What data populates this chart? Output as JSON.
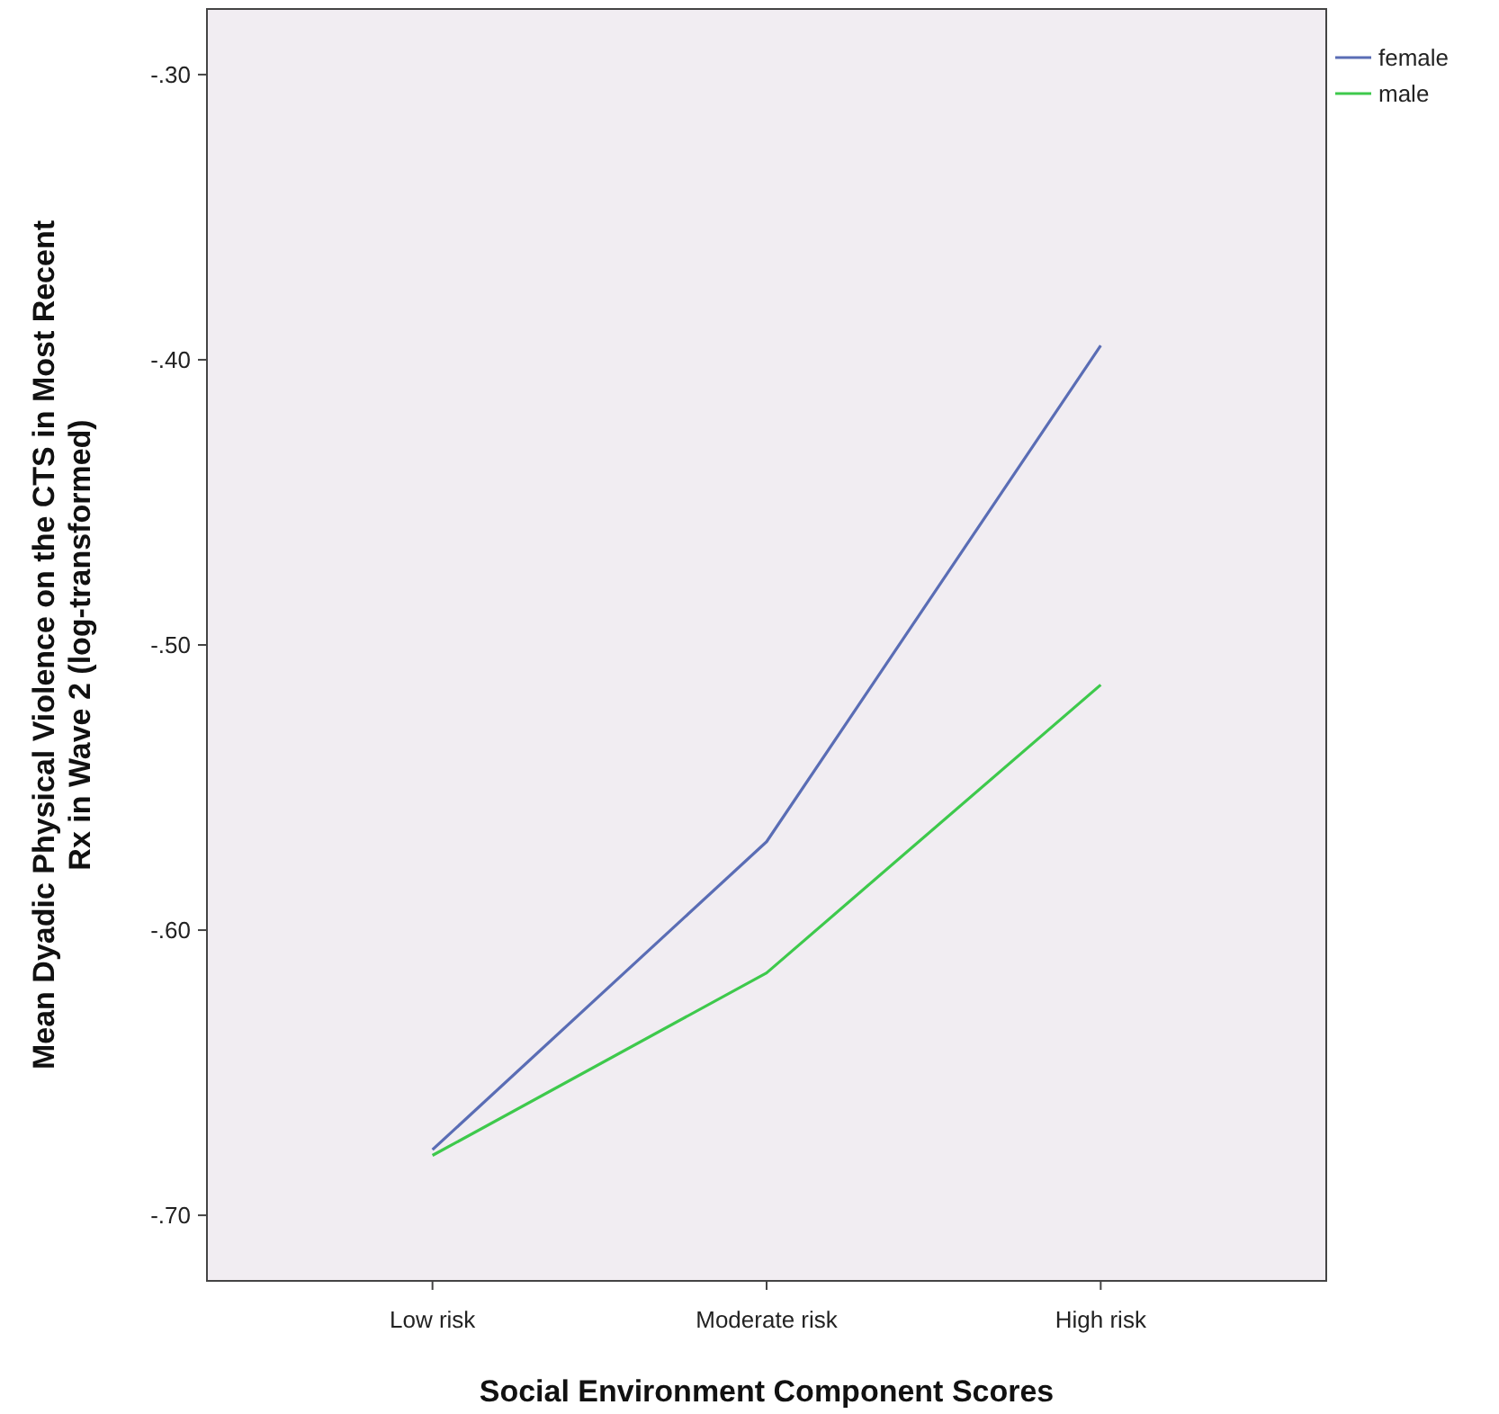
{
  "chart_data": {
    "type": "line",
    "xlabel": "Social Environment Component Scores",
    "ylabel": "Mean Dyadic Physical Violence on the CTS in Most Recent\nRx in Wave 2 (log-transformed)",
    "categories": [
      "Low risk",
      "Moderate risk",
      "High risk"
    ],
    "series": [
      {
        "name": "female",
        "color": "#5a6db5",
        "values": [
          -0.677,
          -0.569,
          -0.395
        ]
      },
      {
        "name": "male",
        "color": "#3ec94c",
        "values": [
          -0.679,
          -0.615,
          -0.514
        ]
      }
    ],
    "ylim": [
      -0.723,
      -0.277
    ],
    "yticks": [
      {
        "value": -0.7,
        "label": "-.70"
      },
      {
        "value": -0.6,
        "label": "-.60"
      },
      {
        "value": -0.5,
        "label": "-.50"
      },
      {
        "value": -0.4,
        "label": "-.40"
      },
      {
        "value": -0.3,
        "label": "-.30"
      }
    ],
    "grid": false,
    "legend": "top right",
    "marker": "none",
    "line_style": "solid"
  }
}
